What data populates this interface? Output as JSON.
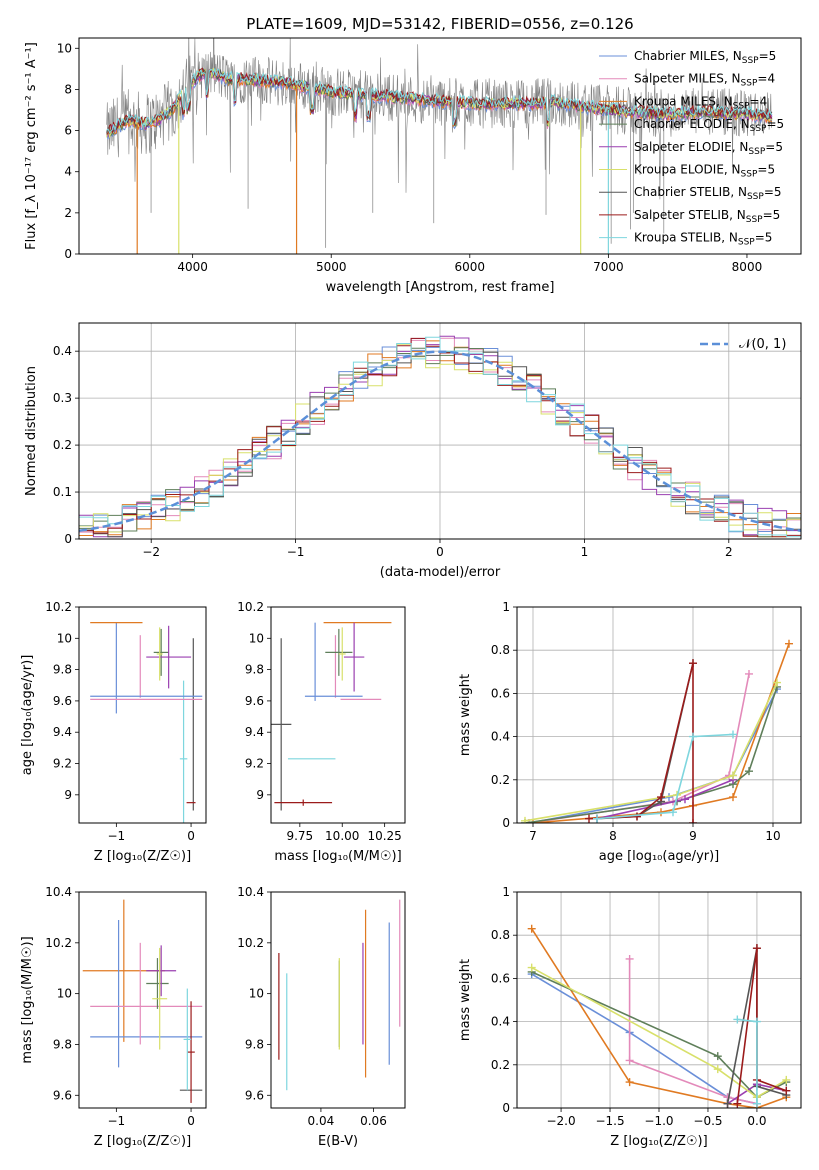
{
  "figure": {
    "title": "PLATE=1609, MJD=53142, FIBERID=0556, z=0.126"
  },
  "colors": {
    "Chabrier MILES": "#6a8fd8",
    "Salpeter MILES": "#e38aba",
    "Kroupa MILES": "#e07a22",
    "Chabrier ELODIE": "#5f7f5a",
    "Salpeter ELODIE": "#9a3fb0",
    "Kroupa ELODIE": "#d8e06a",
    "Chabrier STELIB": "#555555",
    "Salpeter STELIB": "#9b1b1b",
    "Kroupa STELIB": "#7ed6de",
    "data": "#808080",
    "normal": "#5b8fd8",
    "grid": "#b0b0b0"
  },
  "chart_data": [
    {
      "id": "spectrum",
      "type": "line",
      "xlabel": "wavelength [Angstrom, rest frame]",
      "ylabel": "Flux [f_λ 10⁻¹⁷ erg cm⁻² s⁻¹ A⁻¹]",
      "xlim": [
        3180,
        8390
      ],
      "ylim": [
        0,
        10.5
      ],
      "xticks": [
        4000,
        5000,
        6000,
        7000,
        8000
      ],
      "yticks": [
        0,
        2,
        4,
        6,
        8,
        10
      ],
      "grid": false,
      "legend_position": "top-right",
      "legend": [
        {
          "label": "Chabrier MILES, N",
          "sub": "SSP",
          "tail": "=5",
          "series": "Chabrier MILES"
        },
        {
          "label": "Salpeter MILES, N",
          "sub": "SSP",
          "tail": "=4",
          "series": "Salpeter MILES"
        },
        {
          "label": "Kroupa MILES, N",
          "sub": "SSP",
          "tail": "=4",
          "series": "Kroupa MILES"
        },
        {
          "label": "Chabrier ELODIE, N",
          "sub": "SSP",
          "tail": "=5",
          "series": "Chabrier ELODIE"
        },
        {
          "label": "Salpeter ELODIE, N",
          "sub": "SSP",
          "tail": "=5",
          "series": "Salpeter ELODIE"
        },
        {
          "label": "Kroupa ELODIE, N",
          "sub": "SSP",
          "tail": "=5",
          "series": "Kroupa ELODIE"
        },
        {
          "label": "Chabrier STELIB, N",
          "sub": "SSP",
          "tail": "=5",
          "series": "Chabrier STELIB"
        },
        {
          "label": "Salpeter STELIB, N",
          "sub": "SSP",
          "tail": "=5",
          "series": "Salpeter STELIB"
        },
        {
          "label": "Kroupa STELIB, N",
          "sub": "SSP",
          "tail": "=5",
          "series": "Kroupa STELIB"
        }
      ],
      "model_continuum": [
        [
          3380,
          5.8
        ],
        [
          3450,
          6.2
        ],
        [
          3550,
          6.5
        ],
        [
          3650,
          6.3
        ],
        [
          3750,
          6.5
        ],
        [
          3850,
          7.0
        ],
        [
          3950,
          8.0
        ],
        [
          4050,
          8.7
        ],
        [
          4150,
          8.8
        ],
        [
          4250,
          8.5
        ],
        [
          4350,
          8.5
        ],
        [
          4500,
          8.4
        ],
        [
          4700,
          8.3
        ],
        [
          4900,
          8.0
        ],
        [
          5100,
          7.8
        ],
        [
          5300,
          7.7
        ],
        [
          5500,
          7.6
        ],
        [
          5800,
          7.4
        ],
        [
          6100,
          7.3
        ],
        [
          6400,
          7.3
        ],
        [
          6600,
          7.4
        ],
        [
          6800,
          7.2
        ],
        [
          7000,
          7.0
        ],
        [
          7200,
          6.9
        ],
        [
          7400,
          6.8
        ],
        [
          7700,
          6.9
        ],
        [
          8000,
          6.8
        ],
        [
          8180,
          6.7
        ]
      ],
      "absorption_features": [
        3934,
        3969,
        4102,
        4304,
        4861,
        5175,
        5270,
        5890,
        6563
      ],
      "model_dropouts": [
        {
          "series": "Kroupa MILES",
          "wavelength": 3600
        },
        {
          "series": "Kroupa ELODIE",
          "wavelength": 3900
        },
        {
          "series": "Kroupa MILES",
          "wavelength": 4750
        },
        {
          "series": "Kroupa ELODIE",
          "wavelength": 6800
        },
        {
          "series": "Kroupa STELIB",
          "wavelength": 7000
        }
      ]
    },
    {
      "id": "residuals",
      "type": "line",
      "xlabel": "(data-model)/error",
      "ylabel": "Normed distribution",
      "xlim": [
        -2.5,
        2.5
      ],
      "ylim": [
        0,
        0.46
      ],
      "xticks": [
        -2,
        -1,
        0,
        1,
        2
      ],
      "yticks": [
        0.0,
        0.1,
        0.2,
        0.3,
        0.4
      ],
      "grid": true,
      "legend_position": "top-right",
      "legend": [
        {
          "label": "𝒩(0, 1)",
          "series": "normal"
        }
      ],
      "hist_bin_width": 0.1
    },
    {
      "id": "age-vs-Z",
      "type": "scatter",
      "xlabel": "Z [log₁₀(Z/Z☉)]",
      "ylabel": "age  [log₁₀(age/yr)]",
      "xlim": [
        -1.5,
        0.2
      ],
      "ylim": [
        8.82,
        10.2
      ],
      "xticks": [
        -1,
        0
      ],
      "yticks": [
        9.0,
        9.2,
        9.4,
        9.6,
        9.8,
        10.0,
        10.2
      ],
      "grid": false,
      "points": [
        {
          "series": "Chabrier MILES",
          "x": -1.0,
          "xerr": 0.0,
          "y": 9.81,
          "yerr": 0.29
        },
        {
          "series": "Kroupa MILES",
          "x": -1.0,
          "xerr": 0.35,
          "y": 10.1,
          "yerr": 0.0
        },
        {
          "series": "Salpeter MILES",
          "x": -0.68,
          "xerr": 0.0,
          "y": 9.82,
          "yerr": 0.2
        },
        {
          "series": "Chabrier ELODIE",
          "x": -0.4,
          "xerr": 0.1,
          "y": 9.91,
          "yerr": 0.15
        },
        {
          "series": "Salpeter ELODIE",
          "x": -0.3,
          "xerr": 0.3,
          "y": 9.88,
          "yerr": 0.2
        },
        {
          "series": "Kroupa ELODIE",
          "x": -0.42,
          "xerr": 0.04,
          "y": 9.9,
          "yerr": 0.17
        },
        {
          "series": "Chabrier STELIB",
          "x": 0.03,
          "xerr": 0.0,
          "y": 9.45,
          "yerr": 0.55
        },
        {
          "series": "Salpeter STELIB",
          "x": 0.0,
          "xerr": 0.06,
          "y": 8.95,
          "yerr": 0.0
        },
        {
          "series": "Kroupa STELIB",
          "x": -0.1,
          "xerr": 0.05,
          "y": 9.23,
          "yerr": 0.5
        },
        {
          "series": "Chabrier MILES",
          "x": -0.6,
          "xerr": 0.75,
          "y": 9.63,
          "yerr": 0.0
        },
        {
          "series": "Salpeter MILES",
          "x": -0.6,
          "xerr": 0.75,
          "y": 9.61,
          "yerr": 0.0
        }
      ]
    },
    {
      "id": "age-vs-mass",
      "type": "scatter",
      "xlabel": "mass [log₁₀(M/M☉)]",
      "ylabel": "",
      "xlim": [
        9.58,
        10.37
      ],
      "ylim": [
        8.82,
        10.2
      ],
      "xticks": [
        9.75,
        10.0,
        10.25
      ],
      "xticklabels": [
        "9.75",
        "10.00",
        "10.25"
      ],
      "yticks": [
        9.0,
        9.2,
        9.4,
        9.6,
        9.8,
        10.0,
        10.2
      ],
      "grid": false,
      "points": [
        {
          "series": "Kroupa MILES",
          "x": 10.09,
          "xerr": 0.2,
          "y": 10.1,
          "yerr": 0.0
        },
        {
          "series": "Chabrier MILES",
          "x": 9.84,
          "xerr": 0.0,
          "y": 9.85,
          "yerr": 0.25
        },
        {
          "series": "Salpeter MILES",
          "x": 9.96,
          "xerr": 0.0,
          "y": 9.82,
          "yerr": 0.2
        },
        {
          "series": "Chabrier ELODIE",
          "x": 9.98,
          "xerr": 0.08,
          "y": 9.91,
          "yerr": 0.15
        },
        {
          "series": "Salpeter ELODIE",
          "x": 10.07,
          "xerr": 0.06,
          "y": 9.88,
          "yerr": 0.22
        },
        {
          "series": "Kroupa ELODIE",
          "x": 10.0,
          "xerr": 0.02,
          "y": 9.9,
          "yerr": 0.17
        },
        {
          "series": "Chabrier STELIB",
          "x": 9.64,
          "xerr": 0.06,
          "y": 9.45,
          "yerr": 0.55
        },
        {
          "series": "Salpeter STELIB",
          "x": 9.77,
          "xerr": 0.17,
          "y": 8.95,
          "yerr": 0.02
        },
        {
          "series": "Kroupa STELIB",
          "x": 9.82,
          "xerr": 0.14,
          "y": 9.23,
          "yerr": 0.0
        },
        {
          "series": "Chabrier MILES",
          "x": 9.95,
          "xerr": 0.17,
          "y": 9.63,
          "yerr": 0.0
        },
        {
          "series": "Salpeter MILES",
          "x": 10.11,
          "xerr": 0.12,
          "y": 9.61,
          "yerr": 0.0
        }
      ]
    },
    {
      "id": "massweight-vs-age",
      "type": "line",
      "xlabel": "age  [log₁₀(age/yr)]",
      "ylabel": "mass weight",
      "xlim": [
        6.8,
        10.35
      ],
      "ylim": [
        0,
        1
      ],
      "xticks": [
        7,
        8,
        9,
        10
      ],
      "yticks": [
        0.0,
        0.2,
        0.4,
        0.6,
        0.8,
        1.0
      ],
      "grid": true,
      "series": [
        {
          "name": "Chabrier MILES",
          "x": [
            6.95,
            8.7,
            9.5,
            10.05
          ],
          "y": [
            0.0,
            0.12,
            0.22,
            0.62
          ]
        },
        {
          "name": "Salpeter MILES",
          "x": [
            6.95,
            8.75,
            9.45,
            9.7
          ],
          "y": [
            0.0,
            0.1,
            0.22,
            0.69
          ]
        },
        {
          "name": "Kroupa MILES",
          "x": [
            7.0,
            8.6,
            9.0,
            9.5,
            10.2
          ],
          "y": [
            0.0,
            0.05,
            0.08,
            0.12,
            0.83
          ]
        },
        {
          "name": "Chabrier ELODIE",
          "x": [
            6.9,
            8.8,
            9.5,
            9.7,
            10.05
          ],
          "y": [
            0.0,
            0.1,
            0.18,
            0.24,
            0.63
          ]
        },
        {
          "name": "Salpeter ELODIE",
          "x": [
            7.8,
            8.9,
            9.5
          ],
          "y": [
            0.02,
            0.11,
            0.2
          ]
        },
        {
          "name": "Kroupa ELODIE",
          "x": [
            6.9,
            8.8,
            9.5,
            10.05
          ],
          "y": [
            0.01,
            0.13,
            0.22,
            0.65
          ]
        },
        {
          "name": "Chabrier STELIB",
          "x": [
            7.8,
            8.3,
            8.6,
            9.0
          ],
          "y": [
            0.02,
            0.03,
            0.1,
            0.74
          ]
        },
        {
          "name": "Salpeter STELIB",
          "x": [
            7.7,
            8.3,
            8.6,
            9.0,
            9.0
          ],
          "y": [
            0.02,
            0.03,
            0.12,
            0.74,
            0.0
          ]
        },
        {
          "name": "Kroupa STELIB",
          "x": [
            7.8,
            8.75,
            9.0,
            9.5
          ],
          "y": [
            0.02,
            0.05,
            0.4,
            0.41
          ]
        }
      ]
    },
    {
      "id": "mass-vs-Z",
      "type": "scatter",
      "xlabel": "Z [log₁₀(Z/Z☉)]",
      "ylabel": "mass [log₁₀(M/M☉)]",
      "xlim": [
        -1.5,
        0.2
      ],
      "ylim": [
        9.55,
        10.4
      ],
      "xticks": [
        -1,
        0
      ],
      "yticks": [
        9.6,
        9.8,
        10.0,
        10.2,
        10.4
      ],
      "grid": false,
      "points": [
        {
          "series": "Kroupa MILES",
          "x": -0.9,
          "xerr": 0.55,
          "y": 10.09,
          "yerr": 0.28
        },
        {
          "series": "Chabrier MILES",
          "x": -0.6,
          "xerr": 0.75,
          "y": 9.83,
          "yerr": 0.0
        },
        {
          "series": "Chabrier MILES",
          "x": -0.97,
          "xerr": 0.0,
          "y": 10.0,
          "yerr": 0.29
        },
        {
          "series": "Salpeter MILES",
          "x": -0.6,
          "xerr": 0.75,
          "y": 9.95,
          "yerr": 0.0
        },
        {
          "series": "Salpeter MILES",
          "x": -0.68,
          "xerr": 0.0,
          "y": 10.0,
          "yerr": 0.2
        },
        {
          "series": "Chabrier ELODIE",
          "x": -0.45,
          "xerr": 0.15,
          "y": 10.04,
          "yerr": 0.1
        },
        {
          "series": "Salpeter ELODIE",
          "x": -0.4,
          "xerr": 0.2,
          "y": 10.09,
          "yerr": 0.1
        },
        {
          "series": "Kroupa ELODIE",
          "x": -0.42,
          "xerr": 0.1,
          "y": 9.98,
          "yerr": 0.2
        },
        {
          "series": "Chabrier STELIB",
          "x": 0.0,
          "xerr": 0.15,
          "y": 9.62,
          "yerr": 0.0
        },
        {
          "series": "Salpeter STELIB",
          "x": 0.0,
          "xerr": 0.05,
          "y": 9.77,
          "yerr": 0.2
        },
        {
          "series": "Kroupa STELIB",
          "x": -0.05,
          "xerr": 0.05,
          "y": 9.82,
          "yerr": 0.2
        }
      ]
    },
    {
      "id": "mass-vs-EBV",
      "type": "scatter",
      "xlabel": "E(B-V)",
      "ylabel": "",
      "xlim": [
        0.021,
        0.072
      ],
      "ylim": [
        9.55,
        10.4
      ],
      "xticks": [
        0.04,
        0.06
      ],
      "xticklabels": [
        "0.04",
        "0.06"
      ],
      "yticks": [
        9.6,
        9.8,
        10.0,
        10.2,
        10.4
      ],
      "grid": false,
      "points": [
        {
          "series": "Salpeter STELIB",
          "x": 0.024,
          "xerr": 0.0,
          "y": 9.95,
          "yerr": 0.21
        },
        {
          "series": "Kroupa STELIB",
          "x": 0.027,
          "xerr": 0.0,
          "y": 9.85,
          "yerr": 0.23
        },
        {
          "series": "Chabrier ELODIE",
          "x": 0.047,
          "xerr": 0.0,
          "y": 9.96,
          "yerr": 0.17
        },
        {
          "series": "Kroupa ELODIE",
          "x": 0.047,
          "xerr": 0.0,
          "y": 9.96,
          "yerr": 0.18
        },
        {
          "series": "Salpeter ELODIE",
          "x": 0.056,
          "xerr": 0.0,
          "y": 10.0,
          "yerr": 0.2
        },
        {
          "series": "Kroupa MILES",
          "x": 0.057,
          "xerr": 0.0,
          "y": 10.0,
          "yerr": 0.33
        },
        {
          "series": "Chabrier MILES",
          "x": 0.066,
          "xerr": 0.0,
          "y": 10.0,
          "yerr": 0.28
        },
        {
          "series": "Salpeter MILES",
          "x": 0.07,
          "xerr": 0.0,
          "y": 10.12,
          "yerr": 0.25
        }
      ]
    },
    {
      "id": "massweight-vs-Z",
      "type": "line",
      "xlabel": "Z [log₁₀(Z/Z☉)]",
      "ylabel": "mass weight",
      "xlim": [
        -2.45,
        0.45
      ],
      "ylim": [
        0,
        1
      ],
      "xticks": [
        -2.0,
        -1.5,
        -1.0,
        -0.5,
        0.0
      ],
      "xticklabels": [
        "−2.0",
        "−1.5",
        "−1.0",
        "−0.5",
        "0.0"
      ],
      "yticks": [
        0.0,
        0.2,
        0.4,
        0.6,
        0.8,
        1.0
      ],
      "grid": true,
      "series": [
        {
          "name": "Chabrier MILES",
          "x": [
            -2.3,
            -1.3,
            -0.3,
            0.0
          ],
          "y": [
            0.62,
            0.35,
            0.05,
            0.02
          ]
        },
        {
          "name": "Salpeter MILES",
          "x": [
            -1.3,
            -1.3,
            -0.3,
            0.0,
            0.0
          ],
          "y": [
            0.69,
            0.22,
            0.05,
            0.02,
            0.0
          ]
        },
        {
          "name": "Kroupa MILES",
          "x": [
            -2.3,
            -1.3,
            -0.3,
            0.0,
            0.3
          ],
          "y": [
            0.83,
            0.12,
            0.02,
            0.0,
            0.05
          ]
        },
        {
          "name": "Chabrier ELODIE",
          "x": [
            -2.3,
            -0.4,
            0.0,
            0.3
          ],
          "y": [
            0.63,
            0.24,
            0.05,
            0.12
          ]
        },
        {
          "name": "Salpeter ELODIE",
          "x": [
            -0.3,
            0.0,
            0.3
          ],
          "y": [
            0.02,
            0.11,
            0.08
          ]
        },
        {
          "name": "Kroupa ELODIE",
          "x": [
            -2.3,
            -0.4,
            0.0,
            0.3
          ],
          "y": [
            0.65,
            0.18,
            0.05,
            0.13
          ]
        },
        {
          "name": "Chabrier STELIB",
          "x": [
            -0.3,
            0.0,
            0.0,
            0.3
          ],
          "y": [
            0.02,
            0.74,
            0.1,
            0.06
          ]
        },
        {
          "name": "Salpeter STELIB",
          "x": [
            -0.2,
            0.0,
            0.0,
            0.3
          ],
          "y": [
            0.02,
            0.74,
            0.13,
            0.08
          ]
        },
        {
          "name": "Kroupa STELIB",
          "x": [
            -0.2,
            0.0,
            0.0
          ],
          "y": [
            0.41,
            0.4,
            0.02
          ]
        }
      ]
    }
  ]
}
